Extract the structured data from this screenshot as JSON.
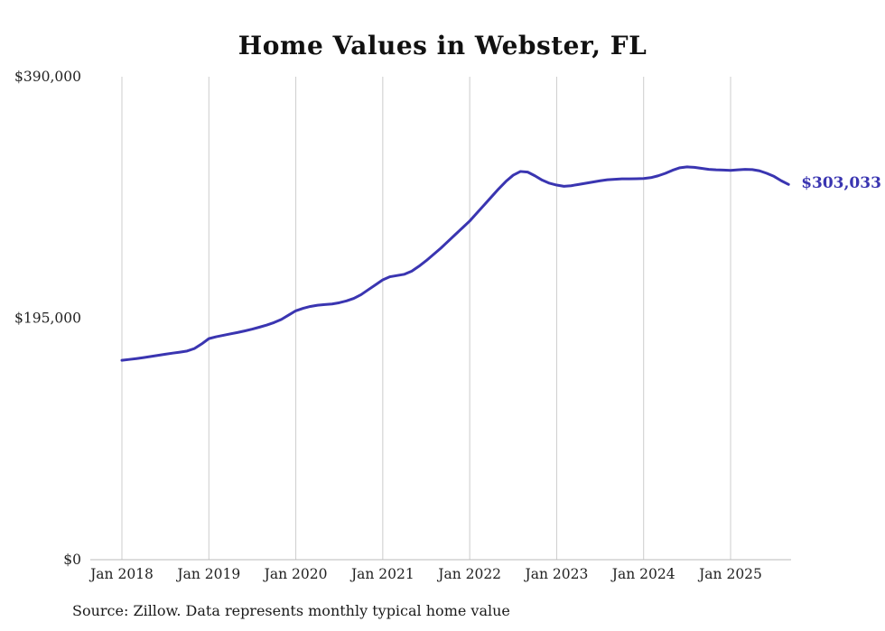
{
  "chart_data": {
    "type": "line",
    "title": "Home Values in Webster, FL",
    "source": "Source: Zillow. Data represents monthly typical home value",
    "end_label": "$303,033",
    "latest_value": 303033,
    "line_color": "#3a35b1",
    "grid_color": "#cccccc",
    "axis_color": "#bbbbbb",
    "text_color": "#222222",
    "ylim": [
      0,
      390000
    ],
    "grid": "vertical-only",
    "legend": "none",
    "frequency": "monthly",
    "start_month": "2018-01",
    "end_month": "2025-09",
    "y_ticks": [
      {
        "label": "$0",
        "value": 0
      },
      {
        "label": "$195,000",
        "value": 195000
      },
      {
        "label": "$390,000",
        "value": 390000
      }
    ],
    "x_ticks": [
      {
        "label": "Jan 2018",
        "month_index": 0
      },
      {
        "label": "Jan 2019",
        "month_index": 12
      },
      {
        "label": "Jan 2020",
        "month_index": 24
      },
      {
        "label": "Jan 2021",
        "month_index": 36
      },
      {
        "label": "Jan 2022",
        "month_index": 48
      },
      {
        "label": "Jan 2023",
        "month_index": 60
      },
      {
        "label": "Jan 2024",
        "month_index": 72
      },
      {
        "label": "Jan 2025",
        "month_index": 84
      }
    ],
    "series": [
      {
        "name": "Typical home value",
        "values": [
          161000,
          161700,
          162400,
          163200,
          164100,
          165000,
          165900,
          166800,
          167600,
          168500,
          170500,
          174200,
          178500,
          180000,
          181200,
          182400,
          183500,
          184800,
          186200,
          187800,
          189500,
          191500,
          194000,
          197500,
          201000,
          203000,
          204500,
          205500,
          206000,
          206500,
          207500,
          209000,
          211000,
          214000,
          218000,
          222000,
          226000,
          228500,
          229500,
          230500,
          233000,
          237000,
          241500,
          246500,
          251500,
          257000,
          262500,
          268000,
          273500,
          280000,
          286500,
          293000,
          299500,
          305500,
          310500,
          313500,
          313000,
          310000,
          306500,
          304000,
          302500,
          301500,
          302000,
          303000,
          304000,
          305000,
          306000,
          306800,
          307200,
          307500,
          307500,
          307600,
          307800,
          308500,
          310000,
          312000,
          314500,
          316500,
          317200,
          316800,
          316000,
          315200,
          314800,
          314600,
          314400,
          314800,
          315200,
          315000,
          314000,
          312000,
          309500,
          306000,
          303033
        ]
      }
    ]
  }
}
